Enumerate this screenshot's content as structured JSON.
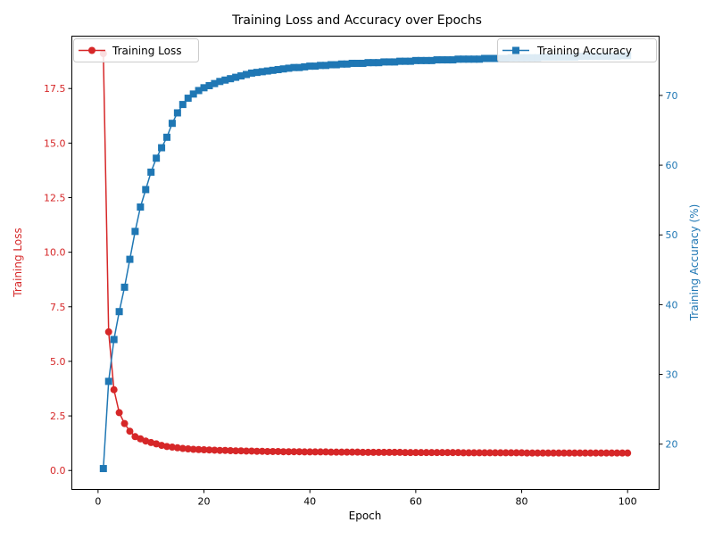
{
  "chart_data": {
    "type": "line",
    "title": "Training Loss and Accuracy over Epochs",
    "xlabel": "Epoch",
    "xlim": [
      -4.95,
      105.95
    ],
    "xticks": [
      0,
      20,
      40,
      60,
      80,
      100
    ],
    "x_start": 1,
    "grid": false,
    "axes": {
      "left": {
        "label": "Training Loss",
        "color": "#d62728",
        "ylim": [
          -0.87,
          19.9
        ],
        "ticks": [
          0.0,
          2.5,
          5.0,
          7.5,
          10.0,
          12.5,
          15.0,
          17.5
        ],
        "tick_labels": [
          "0.0",
          "2.5",
          "5.0",
          "7.5",
          "10.0",
          "12.5",
          "15.0",
          "17.5"
        ]
      },
      "right": {
        "label": "Training Accuracy (%)",
        "color": "#1f77b4",
        "ylim": [
          13.5,
          78.5
        ],
        "ticks": [
          20,
          30,
          40,
          50,
          60,
          70
        ],
        "tick_labels": [
          "20",
          "30",
          "40",
          "50",
          "60",
          "70"
        ]
      }
    },
    "legends": [
      {
        "placement": "upper-left",
        "entry": "Training Loss",
        "marker": "circle",
        "color": "#d62728"
      },
      {
        "placement": "upper-right",
        "entry": "Training Accuracy",
        "marker": "square",
        "color": "#1f77b4"
      }
    ],
    "series": [
      {
        "name": "Training Loss",
        "axis": "left",
        "marker": "circle",
        "color": "#d62728",
        "values": [
          19.1,
          6.35,
          3.7,
          2.65,
          2.15,
          1.8,
          1.55,
          1.45,
          1.35,
          1.28,
          1.22,
          1.15,
          1.1,
          1.07,
          1.04,
          1.01,
          0.99,
          0.97,
          0.96,
          0.95,
          0.94,
          0.93,
          0.92,
          0.92,
          0.91,
          0.9,
          0.9,
          0.89,
          0.89,
          0.88,
          0.88,
          0.87,
          0.87,
          0.87,
          0.86,
          0.86,
          0.86,
          0.86,
          0.85,
          0.85,
          0.85,
          0.85,
          0.85,
          0.84,
          0.84,
          0.84,
          0.84,
          0.84,
          0.84,
          0.83,
          0.83,
          0.83,
          0.83,
          0.83,
          0.83,
          0.83,
          0.83,
          0.82,
          0.82,
          0.82,
          0.82,
          0.82,
          0.82,
          0.82,
          0.82,
          0.82,
          0.82,
          0.82,
          0.81,
          0.81,
          0.81,
          0.81,
          0.81,
          0.81,
          0.81,
          0.81,
          0.81,
          0.81,
          0.81,
          0.81,
          0.8,
          0.8,
          0.8,
          0.8,
          0.8,
          0.8,
          0.8,
          0.8,
          0.8,
          0.8,
          0.8,
          0.8,
          0.8,
          0.8,
          0.8,
          0.8,
          0.8,
          0.8,
          0.8,
          0.8
        ]
      },
      {
        "name": "Training Accuracy",
        "axis": "right",
        "marker": "square",
        "color": "#1f77b4",
        "values": [
          16.5,
          29.0,
          35.0,
          39.0,
          42.5,
          46.5,
          50.5,
          54.0,
          56.5,
          59.0,
          61.0,
          62.5,
          64.0,
          66.0,
          67.5,
          68.7,
          69.6,
          70.2,
          70.7,
          71.1,
          71.4,
          71.7,
          72.0,
          72.2,
          72.4,
          72.6,
          72.8,
          73.0,
          73.2,
          73.3,
          73.4,
          73.5,
          73.6,
          73.7,
          73.8,
          73.9,
          74.0,
          74.0,
          74.1,
          74.2,
          74.2,
          74.3,
          74.3,
          74.4,
          74.4,
          74.5,
          74.5,
          74.6,
          74.6,
          74.6,
          74.7,
          74.7,
          74.7,
          74.8,
          74.8,
          74.8,
          74.9,
          74.9,
          74.9,
          75.0,
          75.0,
          75.0,
          75.0,
          75.1,
          75.1,
          75.1,
          75.1,
          75.2,
          75.2,
          75.2,
          75.2,
          75.2,
          75.3,
          75.3,
          75.3,
          75.3,
          75.3,
          75.4,
          75.4,
          75.4,
          75.4,
          75.4,
          75.4,
          75.5,
          75.5,
          75.5,
          75.5,
          75.5,
          75.5,
          75.5,
          75.6,
          75.6,
          75.6,
          75.6,
          75.6,
          75.6,
          75.6,
          75.6,
          75.7,
          75.7
        ]
      }
    ]
  }
}
